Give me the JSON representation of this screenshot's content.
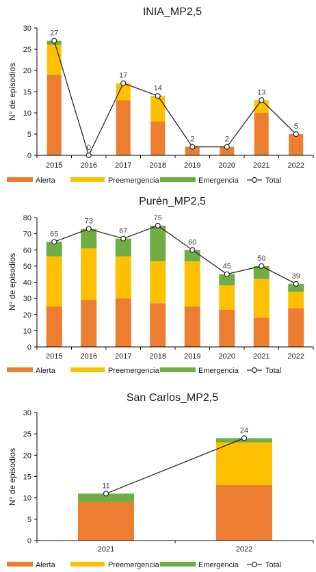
{
  "colors": {
    "alerta": "#ED7D31",
    "preemergencia": "#FFC000",
    "emergencia": "#70AD47",
    "total_line": "#262626",
    "axis": "#000000"
  },
  "chart_data": [
    {
      "type": "bar",
      "stacked": true,
      "title": "INIA_MP2,5",
      "ylabel": "N° de episodios",
      "ylim": [
        0,
        30
      ],
      "yticks": [
        0,
        5,
        10,
        15,
        20,
        25,
        30
      ],
      "yticks_text": [
        "0",
        "5",
        "10",
        "15",
        "20",
        "25",
        "30"
      ],
      "categories": [
        "2015",
        "2016",
        "2017",
        "2018",
        "2019",
        "2020",
        "2021",
        "2022"
      ],
      "series": [
        {
          "name": "Alerta",
          "values": [
            19,
            0,
            13,
            8,
            2,
            2,
            10,
            5
          ]
        },
        {
          "name": "Preemergencia",
          "values": [
            7,
            0,
            4,
            6,
            0,
            0,
            3,
            0
          ]
        },
        {
          "name": "Emergencia",
          "values": [
            1,
            0,
            0,
            0,
            0,
            0,
            0,
            0
          ]
        }
      ],
      "line": {
        "name": "Total",
        "values": [
          27,
          0,
          17,
          14,
          2,
          2,
          13,
          5
        ]
      },
      "data_labels": [
        "27",
        "0",
        "17",
        "14",
        "2",
        "2",
        "13",
        "5"
      ],
      "legend": [
        "Alerta",
        "Preemergencia",
        "Emergencia",
        "Total"
      ],
      "legend_position": "bottom",
      "grid": false
    },
    {
      "type": "bar",
      "stacked": true,
      "title": "Purén_MP2,5",
      "ylabel": "N° de episodios",
      "ylim": [
        0,
        80
      ],
      "yticks": [
        0,
        10,
        20,
        30,
        40,
        50,
        60,
        70,
        80
      ],
      "yticks_text": [
        "0",
        "10",
        "20",
        "30",
        "40",
        "50",
        "60",
        "70",
        "80"
      ],
      "categories": [
        "2015",
        "2016",
        "2017",
        "2018",
        "2019",
        "2020",
        "2021",
        "2022"
      ],
      "series": [
        {
          "name": "Alerta",
          "values": [
            25,
            29,
            30,
            27,
            25,
            23,
            18,
            24
          ]
        },
        {
          "name": "Preemergencia",
          "values": [
            31,
            32,
            26,
            26,
            28,
            15,
            24,
            10
          ]
        },
        {
          "name": "Emergencia",
          "values": [
            9,
            12,
            11,
            22,
            7,
            7,
            8,
            5
          ]
        }
      ],
      "line": {
        "name": "Total",
        "values": [
          65,
          73,
          67,
          75,
          60,
          45,
          50,
          39
        ]
      },
      "data_labels": [
        "65",
        "73",
        "67",
        "75",
        "60",
        "45",
        "50",
        "39"
      ],
      "legend": [
        "Alerta",
        "Preemergencia",
        "Emergencia",
        "Total"
      ],
      "legend_position": "bottom",
      "grid": false
    },
    {
      "type": "bar",
      "stacked": true,
      "title": "San Carlos_MP2,5",
      "ylabel": "N° de episodios",
      "ylim": [
        0,
        30
      ],
      "yticks": [
        0,
        5,
        10,
        15,
        20,
        25,
        30
      ],
      "yticks_text": [
        "0",
        "5",
        "10",
        "15",
        "20",
        "25",
        "30"
      ],
      "categories": [
        "2021",
        "2022"
      ],
      "series": [
        {
          "name": "Alerta",
          "values": [
            9,
            13
          ]
        },
        {
          "name": "Preemergencia",
          "values": [
            0,
            10
          ]
        },
        {
          "name": "Emergencia",
          "values": [
            2,
            1
          ]
        }
      ],
      "line": {
        "name": "Total",
        "values": [
          11,
          24
        ]
      },
      "data_labels": [
        "11",
        "24"
      ],
      "legend": [
        "Alerta",
        "Preemergencia",
        "Emergencia",
        "Total"
      ],
      "legend_position": "bottom",
      "grid": false
    }
  ]
}
